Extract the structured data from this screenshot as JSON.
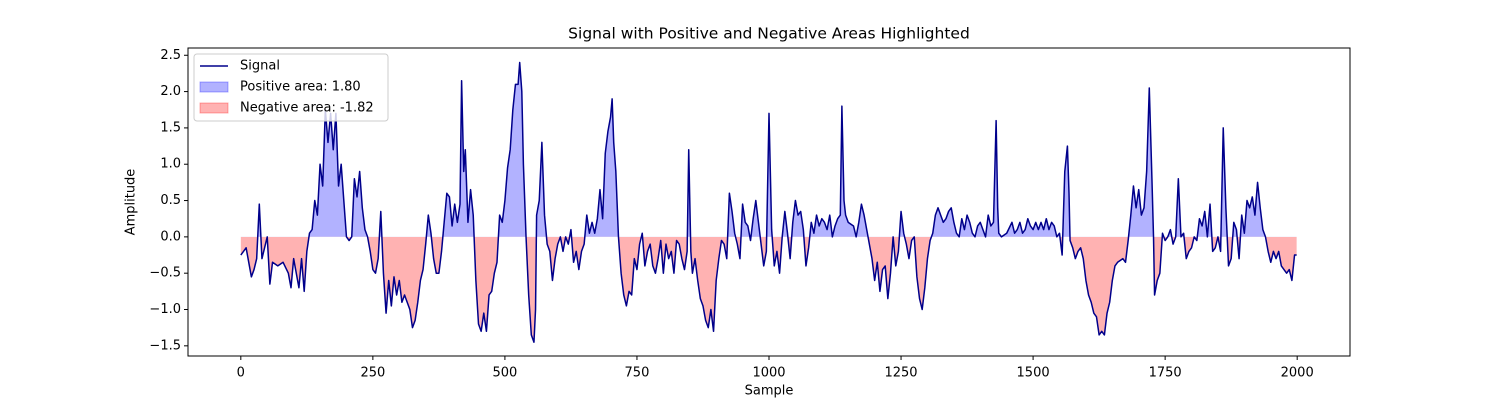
{
  "chart_data": {
    "type": "line",
    "title": "Signal with Positive and Negative Areas Highlighted",
    "xlabel": "Sample",
    "ylabel": "Amplitude",
    "xlim": [
      -100,
      2100
    ],
    "ylim": [
      -1.64,
      2.6
    ],
    "xticks": [
      0,
      250,
      500,
      750,
      1000,
      1250,
      1500,
      1750,
      2000
    ],
    "yticks": [
      {
        "value": -1.5,
        "label": "−1.5"
      },
      {
        "value": -1.0,
        "label": "−1.0"
      },
      {
        "value": -0.5,
        "label": "−0.5"
      },
      {
        "value": 0.0,
        "label": "0.0"
      },
      0.5,
      {
        "value": 1.0,
        "label": "1.0"
      },
      1.5,
      {
        "value": 2.0,
        "label": "2.0"
      },
      2.5
    ],
    "legend": "upper left",
    "positive_area": {
      "name": "Positive area: 1.80",
      "color": "#0000ff"
    },
    "negative_area": {
      "name": "Negative area: -1.82",
      "color": "#ff0000"
    },
    "x": [
      0,
      10,
      20,
      25,
      30,
      35,
      40,
      50,
      55,
      60,
      70,
      80,
      90,
      95,
      100,
      110,
      115,
      120,
      125,
      130,
      135,
      140,
      145,
      150,
      155,
      160,
      165,
      170,
      175,
      180,
      185,
      190,
      195,
      200,
      205,
      210,
      215,
      220,
      225,
      230,
      235,
      240,
      245,
      250,
      255,
      260,
      265,
      270,
      275,
      280,
      285,
      290,
      295,
      300,
      305,
      310,
      320,
      325,
      330,
      335,
      340,
      345,
      350,
      355,
      360,
      365,
      370,
      375,
      380,
      385,
      390,
      395,
      400,
      405,
      410,
      415,
      418,
      422,
      425,
      430,
      435,
      440,
      445,
      450,
      455,
      460,
      465,
      470,
      475,
      480,
      485,
      490,
      495,
      500,
      505,
      510,
      515,
      520,
      525,
      528,
      532,
      535,
      540,
      545,
      550,
      555,
      558,
      560,
      565,
      570,
      575,
      580,
      585,
      590,
      595,
      600,
      605,
      610,
      615,
      620,
      625,
      630,
      635,
      640,
      645,
      650,
      655,
      660,
      665,
      670,
      675,
      680,
      685,
      690,
      695,
      700,
      703,
      706,
      710,
      715,
      720,
      725,
      730,
      735,
      740,
      745,
      750,
      755,
      760,
      765,
      770,
      775,
      780,
      785,
      790,
      795,
      800,
      805,
      810,
      815,
      820,
      825,
      830,
      835,
      840,
      845,
      848,
      852,
      855,
      860,
      865,
      870,
      875,
      880,
      885,
      890,
      895,
      900,
      905,
      910,
      915,
      920,
      925,
      930,
      935,
      940,
      945,
      950,
      955,
      960,
      965,
      970,
      975,
      980,
      985,
      990,
      995,
      1000,
      1005,
      1010,
      1015,
      1020,
      1025,
      1030,
      1035,
      1040,
      1045,
      1050,
      1055,
      1060,
      1065,
      1070,
      1075,
      1080,
      1085,
      1090,
      1095,
      1100,
      1105,
      1110,
      1115,
      1120,
      1125,
      1130,
      1135,
      1138,
      1142,
      1145,
      1150,
      1160,
      1165,
      1170,
      1175,
      1180,
      1185,
      1190,
      1195,
      1200,
      1205,
      1210,
      1215,
      1220,
      1225,
      1230,
      1235,
      1240,
      1245,
      1250,
      1255,
      1260,
      1265,
      1270,
      1275,
      1280,
      1285,
      1290,
      1295,
      1300,
      1305,
      1310,
      1315,
      1320,
      1325,
      1330,
      1335,
      1340,
      1345,
      1350,
      1355,
      1360,
      1365,
      1370,
      1375,
      1380,
      1385,
      1390,
      1395,
      1400,
      1405,
      1410,
      1415,
      1420,
      1425,
      1430,
      1433,
      1435,
      1440,
      1450,
      1460,
      1465,
      1470,
      1475,
      1480,
      1485,
      1490,
      1495,
      1500,
      1505,
      1510,
      1515,
      1520,
      1525,
      1530,
      1535,
      1540,
      1545,
      1550,
      1555,
      1560,
      1565,
      1568,
      1570,
      1575,
      1580,
      1585,
      1590,
      1595,
      1600,
      1605,
      1610,
      1615,
      1620,
      1625,
      1630,
      1635,
      1640,
      1645,
      1650,
      1655,
      1660,
      1670,
      1675,
      1680,
      1685,
      1690,
      1695,
      1700,
      1705,
      1710,
      1715,
      1720,
      1725,
      1728,
      1730,
      1735,
      1740,
      1745,
      1750,
      1755,
      1760,
      1765,
      1770,
      1775,
      1780,
      1785,
      1790,
      1795,
      1800,
      1805,
      1810,
      1815,
      1820,
      1825,
      1830,
      1835,
      1840,
      1845,
      1850,
      1855,
      1860,
      1865,
      1870,
      1875,
      1880,
      1885,
      1890,
      1895,
      1900,
      1905,
      1910,
      1915,
      1920,
      1925,
      1930,
      1935,
      1940,
      1945,
      1950,
      1955,
      1960,
      1965,
      1970,
      1980,
      1985,
      1990,
      1995,
      1999
    ],
    "series": [
      {
        "name": "Signal",
        "color": "#00008b",
        "values": [
          -0.25,
          -0.15,
          -0.55,
          -0.45,
          -0.3,
          0.45,
          -0.3,
          0.0,
          -0.65,
          -0.35,
          -0.4,
          -0.35,
          -0.5,
          -0.7,
          -0.3,
          -0.7,
          -0.3,
          -0.75,
          -0.2,
          0.05,
          0.1,
          0.5,
          0.3,
          1.0,
          0.7,
          1.75,
          1.3,
          1.7,
          1.2,
          1.7,
          0.7,
          1.0,
          0.5,
          0.0,
          -0.05,
          0.0,
          0.8,
          0.55,
          0.9,
          0.4,
          0.1,
          0.0,
          -0.2,
          -0.45,
          -0.5,
          -0.3,
          0.35,
          -0.5,
          -1.05,
          -0.6,
          -0.95,
          -0.55,
          -0.8,
          -0.6,
          -0.9,
          -0.8,
          -1.0,
          -1.25,
          -1.15,
          -0.9,
          -0.6,
          -0.45,
          -0.1,
          0.3,
          0.05,
          -0.3,
          -0.5,
          -0.5,
          -0.2,
          0.2,
          0.6,
          0.55,
          0.15,
          0.45,
          0.2,
          0.45,
          2.15,
          0.9,
          1.2,
          0.2,
          0.65,
          0.3,
          -0.6,
          -1.2,
          -1.3,
          -1.05,
          -1.3,
          -0.8,
          -0.75,
          -0.5,
          -0.35,
          0.3,
          0.2,
          0.5,
          0.95,
          1.2,
          1.75,
          2.1,
          2.1,
          2.4,
          2.0,
          1.0,
          0.0,
          -0.8,
          -1.35,
          -1.45,
          -1.0,
          0.3,
          0.5,
          1.3,
          0.3,
          -0.1,
          -0.2,
          -0.6,
          -0.3,
          -0.1,
          0.0,
          -0.2,
          0.0,
          -0.1,
          0.1,
          -0.35,
          -0.2,
          -0.45,
          -0.2,
          -0.1,
          0.3,
          0.05,
          0.2,
          0.05,
          0.25,
          0.65,
          0.25,
          1.15,
          1.45,
          1.65,
          1.9,
          1.3,
          0.9,
          0.0,
          -0.5,
          -0.8,
          -0.95,
          -0.75,
          -0.8,
          -0.3,
          -0.45,
          -0.1,
          0.05,
          -0.4,
          -0.2,
          -0.1,
          -0.4,
          -0.5,
          -0.3,
          -0.05,
          -0.5,
          -0.1,
          -0.3,
          -0.2,
          -0.5,
          -0.05,
          -0.1,
          -0.3,
          -0.45,
          -0.2,
          1.2,
          -0.2,
          -0.5,
          -0.3,
          -0.6,
          -0.85,
          -0.95,
          -1.15,
          -1.25,
          -1.0,
          -1.3,
          -0.6,
          -0.3,
          -0.05,
          -0.1,
          -0.3,
          0.6,
          0.35,
          0.05,
          -0.1,
          -0.3,
          0.45,
          0.2,
          0.15,
          -0.05,
          0.25,
          0.5,
          0.2,
          -0.1,
          -0.4,
          -0.2,
          1.7,
          0.1,
          -0.4,
          -0.2,
          -0.5,
          0.0,
          0.35,
          0.05,
          -0.3,
          0.2,
          0.5,
          0.3,
          0.35,
          0.1,
          -0.4,
          -0.15,
          0.2,
          0.05,
          0.3,
          0.15,
          0.25,
          0.2,
          0.1,
          0.3,
          0.0,
          0.15,
          0.25,
          0.3,
          1.8,
          0.5,
          0.3,
          0.2,
          0.15,
          0.0,
          0.2,
          0.45,
          0.3,
          0.1,
          -0.1,
          -0.3,
          -0.6,
          -0.35,
          -0.75,
          -0.45,
          -0.4,
          -0.85,
          -0.5,
          0.0,
          -0.4,
          -0.2,
          0.35,
          0.05,
          -0.1,
          -0.3,
          -0.05,
          0.0,
          -0.55,
          -0.85,
          -1.0,
          -0.7,
          -0.3,
          -0.05,
          0.05,
          0.3,
          0.4,
          0.3,
          0.2,
          0.25,
          0.35,
          0.4,
          0.2,
          0.05,
          0.0,
          0.25,
          0.1,
          0.3,
          0.2,
          0.05,
          0.0,
          0.15,
          0.2,
          0.1,
          0.0,
          0.3,
          0.15,
          0.2,
          1.6,
          0.4,
          0.05,
          0.0,
          0.05,
          0.2,
          0.05,
          0.1,
          0.2,
          0.05,
          0.1,
          0.25,
          0.15,
          0.1,
          0.2,
          0.1,
          0.2,
          0.1,
          0.25,
          0.1,
          0.2,
          0.15,
          0.0,
          0.05,
          -0.25,
          0.9,
          1.25,
          0.6,
          -0.05,
          -0.15,
          -0.3,
          -0.2,
          -0.15,
          -0.3,
          -0.6,
          -0.8,
          -0.9,
          -1.05,
          -1.1,
          -1.35,
          -1.3,
          -1.35,
          -1.05,
          -0.9,
          -0.6,
          -0.4,
          -0.35,
          -0.3,
          -0.35,
          -0.05,
          0.3,
          0.7,
          0.4,
          0.65,
          0.3,
          0.4,
          0.9,
          2.05,
          0.8,
          0.0,
          -0.8,
          -0.6,
          -0.5,
          0.05,
          -0.05,
          0.0,
          0.1,
          -0.1,
          0.0,
          0.8,
          0.0,
          0.05,
          -0.3,
          -0.2,
          -0.15,
          0.0,
          -0.05,
          0.25,
          0.15,
          0.35,
          0.0,
          0.45,
          -0.2,
          -0.15,
          0.0,
          -0.2,
          1.5,
          0.4,
          -0.4,
          -0.3,
          0.2,
          0.1,
          -0.3,
          0.3,
          0.05,
          0.5,
          0.4,
          0.55,
          0.3,
          0.75,
          0.4,
          0.1,
          0.0,
          -0.2,
          -0.35,
          -0.2,
          -0.3,
          -0.2,
          -0.4,
          -0.5,
          -0.45,
          -0.6,
          -0.25,
          -0.25
        ]
      }
    ]
  }
}
